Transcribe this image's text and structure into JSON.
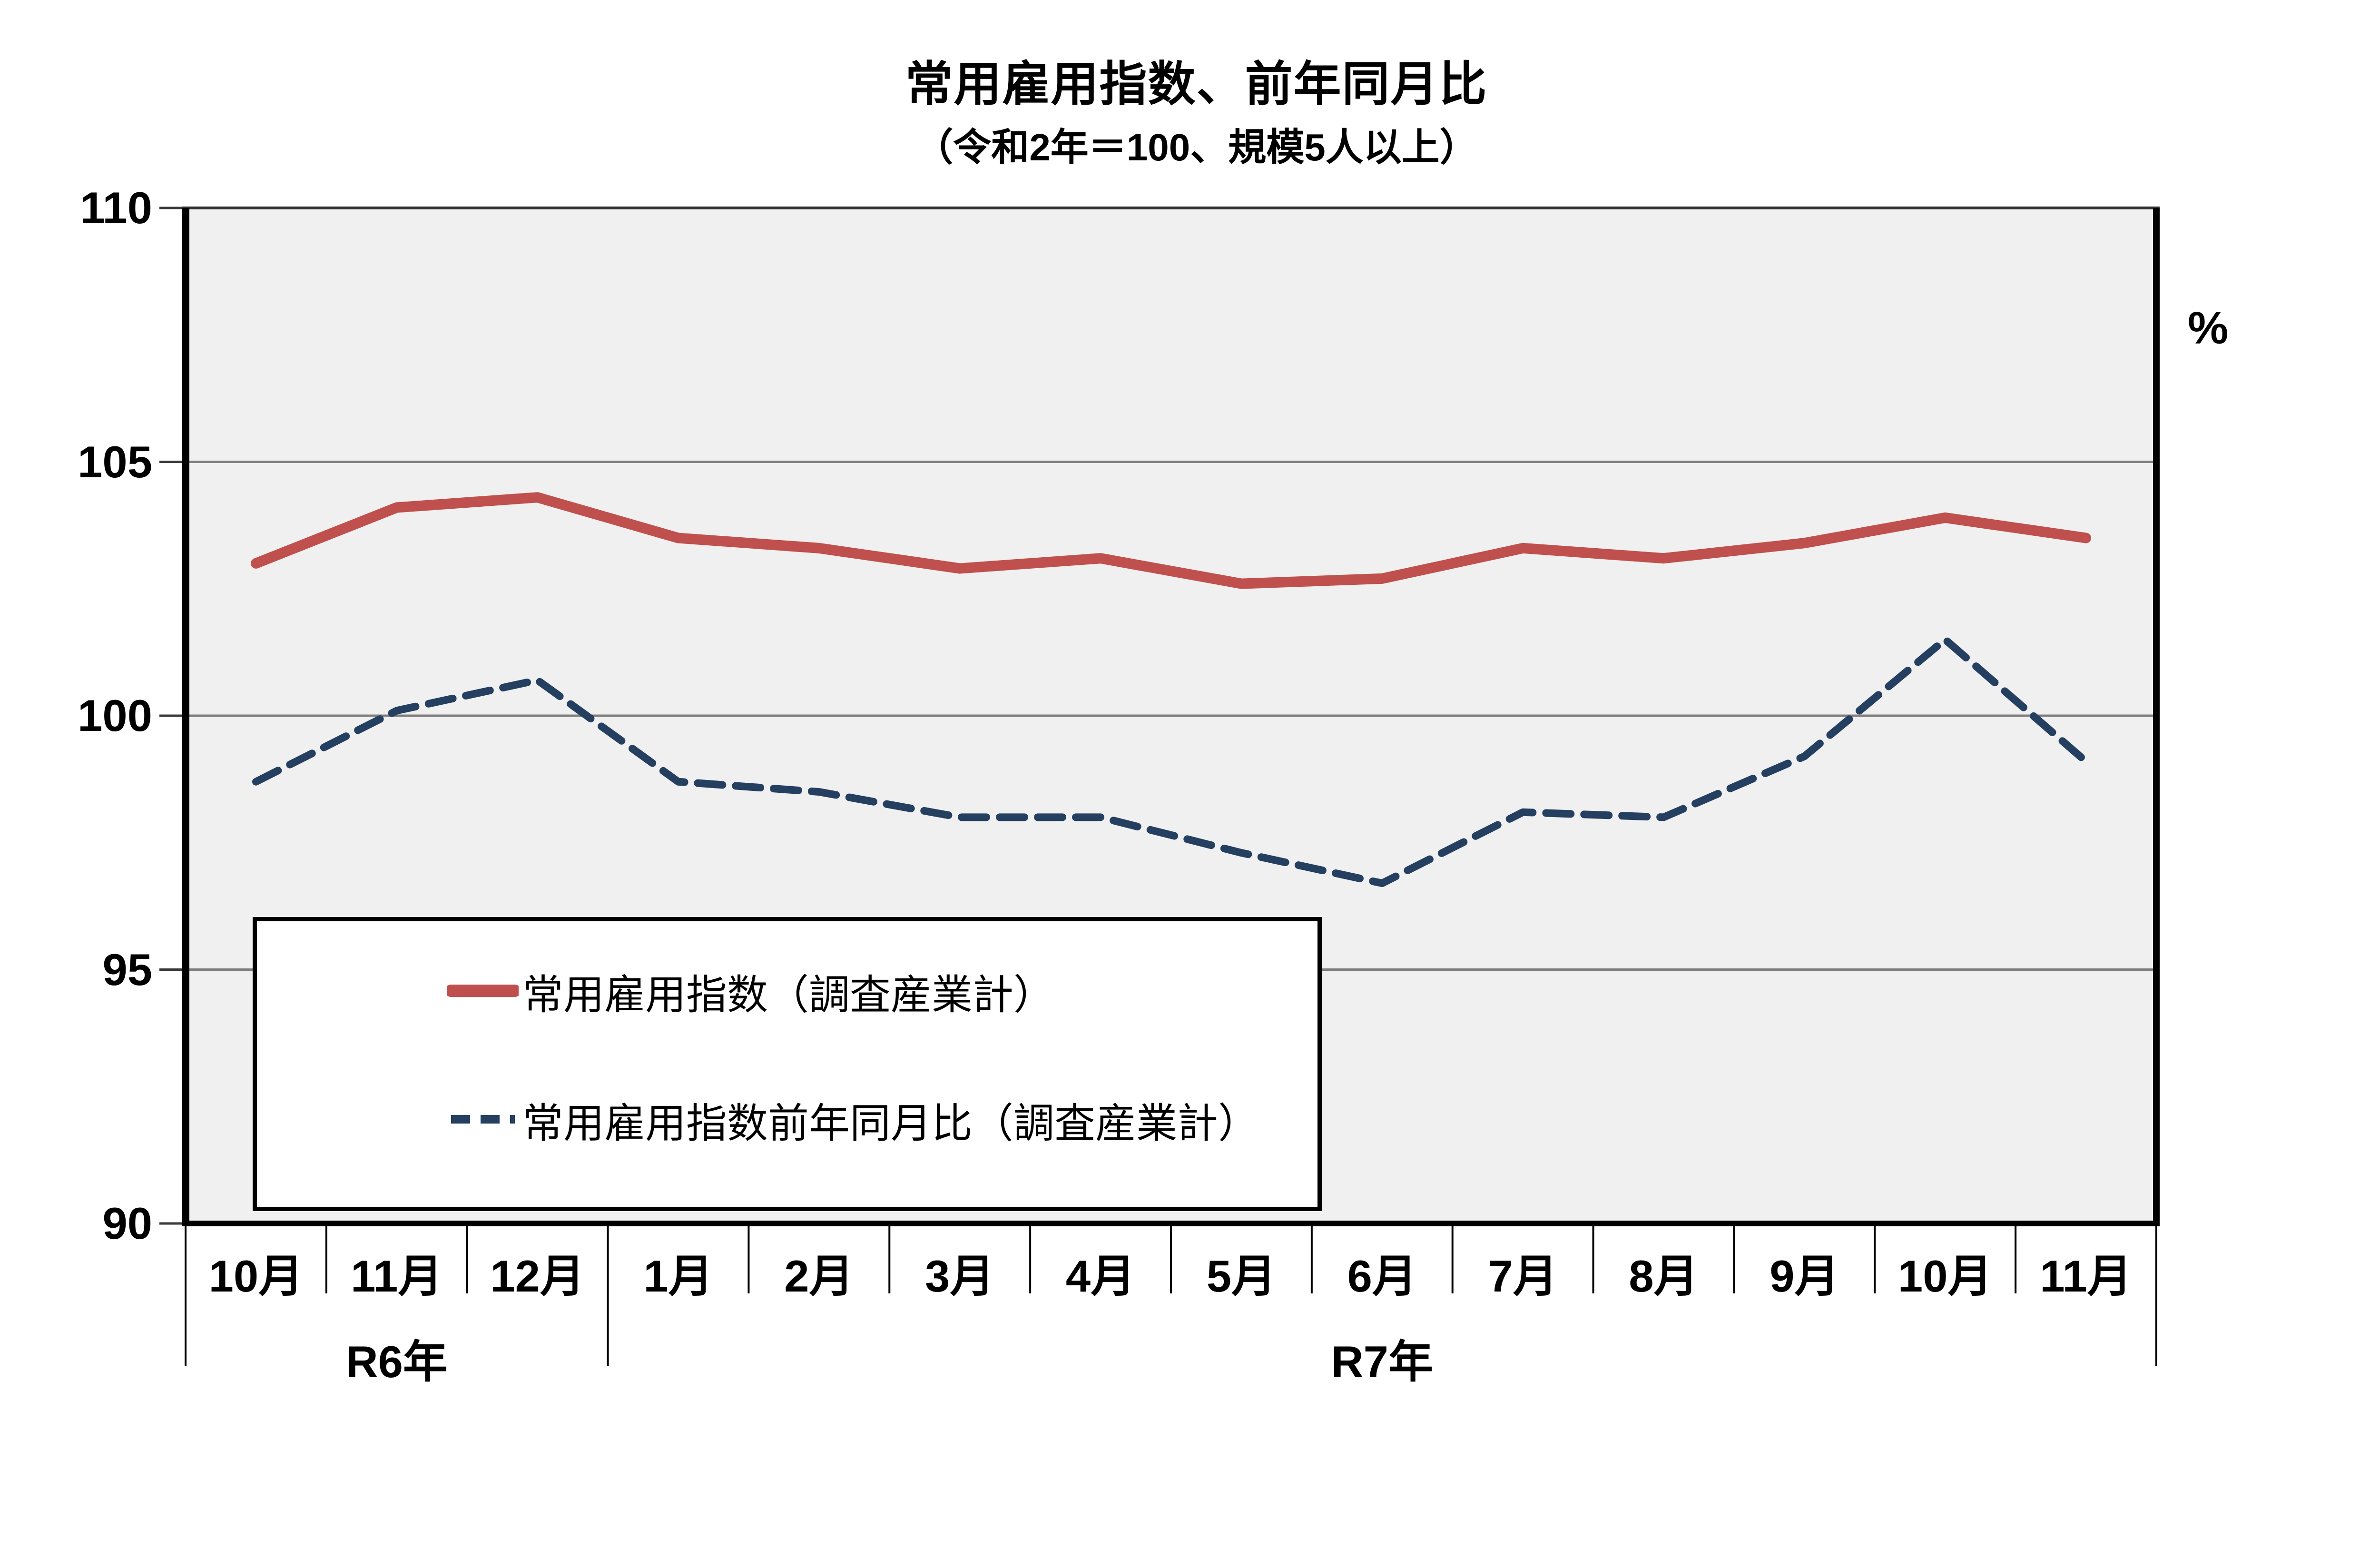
{
  "page": {
    "title": "常用雇用指数、前年同月比",
    "subtitle": "（令和2年＝100、規模5人以上）",
    "unit_label": "%"
  },
  "chart_data": {
    "type": "line",
    "title": "常用雇用指数、前年同月比",
    "subtitle": "（令和2年＝100、規模5人以上）",
    "categories": [
      "10月",
      "11月",
      "12月",
      "1月",
      "2月",
      "3月",
      "4月",
      "5月",
      "6月",
      "7月",
      "8月",
      "9月",
      "10月",
      "11月"
    ],
    "x_axis_year_groups": [
      {
        "label": "R6年",
        "months": 3
      },
      {
        "label": "R7年",
        "months": 11
      }
    ],
    "series": [
      {
        "name": "常用雇用指数（調査産業計）",
        "line_style": "solid",
        "color": "#C0504D",
        "values": [
          103.0,
          104.1,
          104.3,
          103.5,
          103.3,
          102.9,
          103.1,
          102.6,
          102.7,
          103.3,
          103.1,
          103.4,
          103.9,
          103.5
        ]
      },
      {
        "name": "常用雇用指数前年同月比（調査産業計）",
        "line_style": "dashed",
        "color": "#243F60",
        "values": [
          98.7,
          100.1,
          100.7,
          98.7,
          98.5,
          98.0,
          98.0,
          97.3,
          96.7,
          98.1,
          98.0,
          99.2,
          101.5,
          99.1
        ]
      }
    ],
    "y_axis": {
      "min": 90,
      "max": 110,
      "step": 5,
      "ticks": [
        110,
        105,
        100,
        95,
        90
      ]
    },
    "right_unit_label": "%",
    "grid": true,
    "legend_position": "inside-bottom-left",
    "plot_background": "#F0F0F0",
    "gridline_color": "#7F7F7F"
  }
}
